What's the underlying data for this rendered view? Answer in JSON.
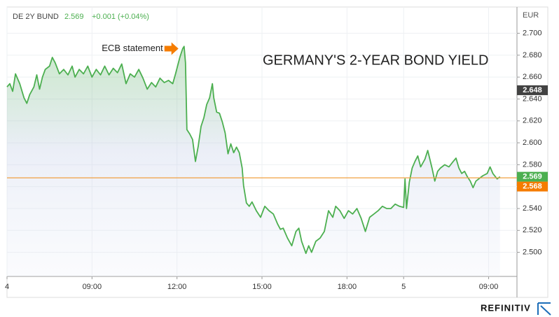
{
  "chart_data": {
    "type": "line",
    "title": "GERMANY'S 2-YEAR BOND YIELD",
    "header": {
      "symbol": "DE 2Y BUND",
      "last": 2.569,
      "change": "+0.001 (+0.04%)"
    },
    "y_unit": "EUR",
    "brand": "REFINITIV",
    "color": "#4caf50",
    "annotation": {
      "text": "ECB statement",
      "x": 3.1,
      "y": 2.686,
      "color": "#f57c00"
    },
    "ref_line": {
      "value": 2.568,
      "color": "#f0a040"
    },
    "price_labels": [
      {
        "value": 2.648,
        "color": "#424242"
      },
      {
        "value": 2.569,
        "color": "#4caf50"
      },
      {
        "value": 2.568,
        "color": "#f57c00"
      }
    ],
    "xlim": [
      -3,
      15
    ],
    "xticks": [
      {
        "value": -3,
        "label": "4"
      },
      {
        "value": 0,
        "label": "09:00"
      },
      {
        "value": 3,
        "label": "12:00"
      },
      {
        "value": 6,
        "label": "15:00"
      },
      {
        "value": 9,
        "label": "18:00"
      },
      {
        "value": 11,
        "label": "5"
      },
      {
        "value": 14,
        "label": "09:00"
      }
    ],
    "ylim": [
      2.478,
      2.724
    ],
    "yticks": [
      {
        "value": 2.5,
        "label": "2.500"
      },
      {
        "value": 2.52,
        "label": "2.520"
      },
      {
        "value": 2.54,
        "label": "2.540"
      },
      {
        "value": 2.56,
        "label": "2.560"
      },
      {
        "value": 2.58,
        "label": "2.580"
      },
      {
        "value": 2.6,
        "label": "2.600"
      },
      {
        "value": 2.62,
        "label": "2.620"
      },
      {
        "value": 2.64,
        "label": "2.640"
      },
      {
        "value": 2.66,
        "label": "2.660"
      },
      {
        "value": 2.68,
        "label": "2.680"
      },
      {
        "value": 2.7,
        "label": "2.700"
      }
    ],
    "grid": true,
    "x": [
      -3.0,
      -2.9,
      -2.8,
      -2.7,
      -2.55,
      -2.4,
      -2.3,
      -2.2,
      -2.05,
      -1.95,
      -1.85,
      -1.75,
      -1.65,
      -1.5,
      -1.4,
      -1.3,
      -1.15,
      -1.0,
      -0.85,
      -0.7,
      -0.6,
      -0.45,
      -0.3,
      -0.15,
      0,
      0.15,
      0.3,
      0.45,
      0.6,
      0.75,
      0.9,
      1.05,
      1.2,
      1.35,
      1.5,
      1.65,
      1.8,
      1.95,
      2.1,
      2.25,
      2.4,
      2.55,
      2.7,
      2.85,
      2.95,
      3.1,
      3.2,
      3.25,
      3.3,
      3.35,
      3.45,
      3.55,
      3.65,
      3.75,
      3.85,
      3.95,
      4.05,
      4.15,
      4.25,
      4.3,
      4.4,
      4.5,
      4.6,
      4.7,
      4.8,
      4.9,
      5.0,
      5.1,
      5.2,
      5.3,
      5.35,
      5.45,
      5.55,
      5.65,
      5.8,
      5.95,
      6.1,
      6.25,
      6.4,
      6.55,
      6.65,
      6.75,
      6.9,
      7.05,
      7.2,
      7.3,
      7.4,
      7.55,
      7.65,
      7.75,
      7.9,
      8.05,
      8.2,
      8.35,
      8.5,
      8.6,
      8.75,
      8.9,
      9.05,
      9.2,
      9.35,
      9.5,
      9.65,
      9.8,
      9.95,
      10.1,
      10.25,
      10.4,
      10.55,
      10.7,
      10.85,
      11.0,
      11.05,
      11.1,
      11.2,
      11.3,
      11.4,
      11.5,
      11.6,
      11.75,
      11.85,
      12.0,
      12.1,
      12.2,
      12.3,
      12.45,
      12.6,
      12.75,
      12.85,
      12.95,
      13.05,
      13.15,
      13.25,
      13.35,
      13.45,
      13.55,
      13.7,
      13.8,
      13.95,
      14.05,
      14.15,
      14.3,
      14.4
    ],
    "values": [
      2.651,
      2.654,
      2.647,
      2.663,
      2.654,
      2.641,
      2.636,
      2.644,
      2.651,
      2.662,
      2.649,
      2.66,
      2.667,
      2.67,
      2.678,
      2.673,
      2.663,
      2.667,
      2.662,
      2.67,
      2.66,
      2.667,
      2.663,
      2.67,
      2.66,
      2.667,
      2.662,
      2.67,
      2.662,
      2.668,
      2.664,
      2.672,
      2.654,
      2.663,
      2.66,
      2.667,
      2.659,
      2.649,
      2.655,
      2.651,
      2.659,
      2.655,
      2.657,
      2.654,
      2.663,
      2.678,
      2.686,
      2.688,
      2.673,
      2.612,
      2.608,
      2.603,
      2.583,
      2.597,
      2.615,
      2.623,
      2.635,
      2.641,
      2.654,
      2.641,
      2.628,
      2.627,
      2.619,
      2.609,
      2.59,
      2.599,
      2.591,
      2.596,
      2.591,
      2.577,
      2.561,
      2.545,
      2.542,
      2.546,
      2.538,
      2.532,
      2.542,
      2.538,
      2.535,
      2.526,
      2.521,
      2.522,
      2.513,
      2.506,
      2.519,
      2.522,
      2.51,
      2.499,
      2.506,
      2.5,
      2.51,
      2.513,
      2.519,
      2.538,
      2.532,
      2.542,
      2.538,
      2.531,
      2.538,
      2.535,
      2.54,
      2.531,
      2.519,
      2.532,
      2.535,
      2.538,
      2.542,
      2.54,
      2.54,
      2.544,
      2.542,
      2.541,
      2.567,
      2.54,
      2.564,
      2.577,
      2.583,
      2.588,
      2.578,
      2.585,
      2.593,
      2.577,
      2.565,
      2.574,
      2.577,
      2.58,
      2.578,
      2.583,
      2.586,
      2.577,
      2.572,
      2.574,
      2.569,
      2.565,
      2.559,
      2.565,
      2.568,
      2.57,
      2.572,
      2.578,
      2.572,
      2.567,
      2.569
    ]
  }
}
